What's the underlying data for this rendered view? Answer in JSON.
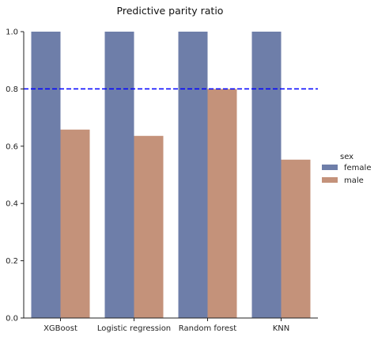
{
  "chart_data": {
    "type": "bar",
    "title": "Predictive parity ratio",
    "xlabel": "",
    "ylabel": "",
    "categories": [
      "XGBoost",
      "Logistic regression",
      "Random forest",
      "KNN"
    ],
    "series": [
      {
        "name": "female",
        "values": [
          1.0,
          1.0,
          1.0,
          1.0
        ],
        "color": "#6e7ea9"
      },
      {
        "name": "male",
        "values": [
          0.658,
          0.636,
          0.8,
          0.553
        ],
        "color": "#c4927a"
      }
    ],
    "ylim": [
      0,
      1.0
    ],
    "yticks": [
      0.0,
      0.2,
      0.4,
      0.6,
      0.8,
      1.0
    ],
    "ytick_labels": [
      "0.0",
      "0.2",
      "0.4",
      "0.6",
      "0.8",
      "1.0"
    ],
    "reference_line": {
      "y": 0.8,
      "color": "#0000ff",
      "style": "dashed"
    },
    "legend": {
      "title": "sex",
      "placement": "right"
    },
    "grid": false
  }
}
